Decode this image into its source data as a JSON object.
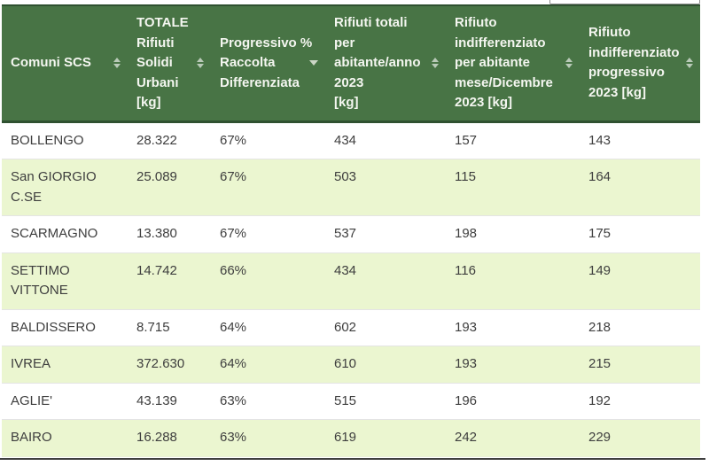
{
  "search": {
    "value": "",
    "placeholder": ""
  },
  "table": {
    "columns": [
      {
        "id": "comune",
        "label": "Comuni SCS",
        "sort_state": "none"
      },
      {
        "id": "totale",
        "label": "TOTALE\nRifiuti\nSolidi\nUrbani\n[kg]",
        "sort_state": "none"
      },
      {
        "id": "progressivo",
        "label": "Progressivo %\nRaccolta\nDifferenziata",
        "sort_state": "desc"
      },
      {
        "id": "rifiuti_totali",
        "label": "Rifiuti totali\nper\nabitante/anno\n2023\n[kg]",
        "sort_state": "none"
      },
      {
        "id": "indiff_mese",
        "label": "Rifiuto\nindifferenziato\nper abitante\nmese/Dicembre\n2023 [kg]",
        "sort_state": "none"
      },
      {
        "id": "indiff_prog",
        "label": "Rifiuto\nindifferenziato\nprogressivo\n2023 [kg]",
        "sort_state": "none"
      }
    ],
    "rows": [
      {
        "comune": "BOLLENGO",
        "totale": "28.322",
        "progressivo": "67%",
        "rifiuti_totali": "434",
        "indiff_mese": "157",
        "indiff_prog": "143"
      },
      {
        "comune": "San GIORGIO C.SE",
        "totale": "25.089",
        "progressivo": "67%",
        "rifiuti_totali": "503",
        "indiff_mese": "115",
        "indiff_prog": "164"
      },
      {
        "comune": "SCARMAGNO",
        "totale": "13.380",
        "progressivo": "67%",
        "rifiuti_totali": "537",
        "indiff_mese": "198",
        "indiff_prog": "175"
      },
      {
        "comune": "SETTIMO VITTONE",
        "totale": "14.742",
        "progressivo": "66%",
        "rifiuti_totali": "434",
        "indiff_mese": "116",
        "indiff_prog": "149"
      },
      {
        "comune": "BALDISSERO",
        "totale": "8.715",
        "progressivo": "64%",
        "rifiuti_totali": "602",
        "indiff_mese": "193",
        "indiff_prog": "218"
      },
      {
        "comune": "IVREA",
        "totale": "372.630",
        "progressivo": "64%",
        "rifiuti_totali": "610",
        "indiff_mese": "193",
        "indiff_prog": "215"
      },
      {
        "comune": "AGLIE'",
        "totale": "43.139",
        "progressivo": "63%",
        "rifiuti_totali": "515",
        "indiff_mese": "196",
        "indiff_prog": "192"
      },
      {
        "comune": "BAIRO",
        "totale": "16.288",
        "progressivo": "63%",
        "rifiuti_totali": "619",
        "indiff_mese": "242",
        "indiff_prog": "229"
      }
    ]
  },
  "colors": {
    "header_bg": "#487445",
    "header_border": "#2f5130",
    "header_text": "#f4f6f0",
    "row_alt_bg": "#ebf6d0",
    "body_text": "#3e3e3e",
    "bottom_rule": "#3f3f3f"
  }
}
